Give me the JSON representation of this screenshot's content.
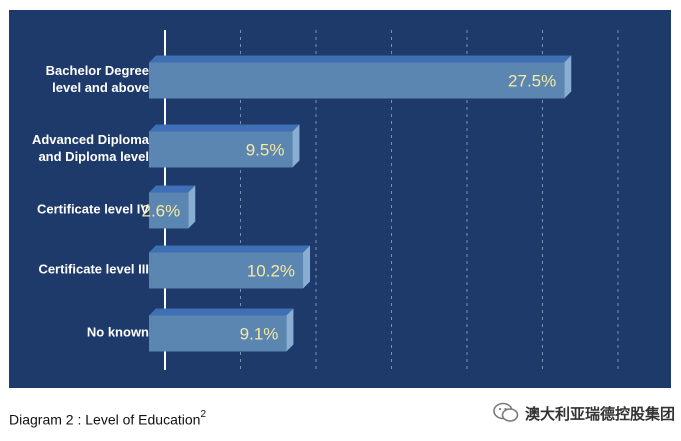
{
  "chart_data": {
    "type": "bar",
    "orientation": "horizontal",
    "categories": [
      "Bachelor Degree\nlevel and above",
      "Advanced Diploma\nand Diploma level",
      "Certificate level IV",
      "Certificate level III",
      "No known"
    ],
    "values": [
      27.5,
      9.5,
      2.6,
      10.2,
      9.1
    ],
    "value_labels": [
      "27.5%",
      "9.5%",
      "2.6%",
      "10.2%",
      "9.1%"
    ],
    "xlim": [
      0,
      30
    ],
    "grid": true,
    "colors": {
      "background": "#1e3a6b",
      "bar_front": "#5b86b1",
      "bar_top": "#3f6fb5",
      "bar_side": "#8aaed2",
      "value_text": "#f6e9a0",
      "grid": "#8fa6c8",
      "axis": "#ffffff"
    }
  },
  "caption": {
    "text": "Diagram 2 : Level of Education",
    "superscript": "2"
  },
  "brand": {
    "text": "澳大利亚瑞德控股集团",
    "icon": "wechat-icon"
  }
}
